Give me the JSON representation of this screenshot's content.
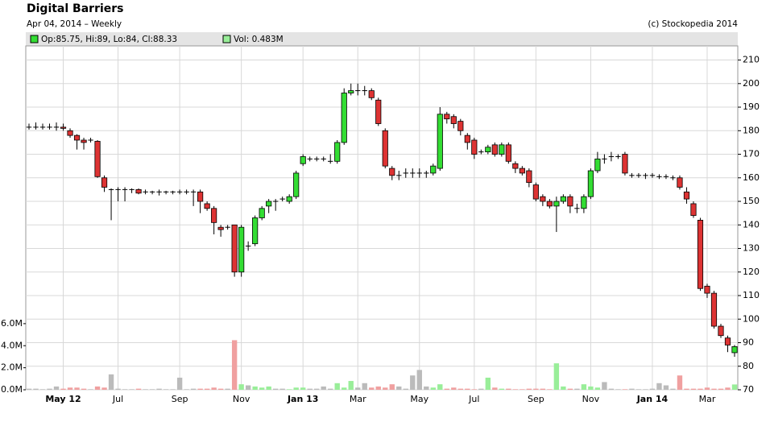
{
  "chart_data": {
    "type": "candlestick",
    "title": "Digital Barriers",
    "subtitle": "Apr 04, 2014 – Weekly",
    "source": "(c) Stockopedia 2014",
    "legend": [
      "Op:85.75, Hi:89, Lo:84, Cl:88.33",
      "Vol: 0.483M"
    ],
    "up_color": "#33dd33",
    "down_color": "#dd3333",
    "volume_colors": {
      "up": "#99ee99",
      "down": "#f0a0a0",
      "flat": "#bbbbbb"
    },
    "grid": true,
    "categories": [
      null,
      null,
      null,
      null,
      null,
      "May 12",
      null,
      null,
      null,
      null,
      null,
      null,
      null,
      "Jul",
      null,
      null,
      null,
      null,
      null,
      null,
      null,
      null,
      "Sep",
      null,
      null,
      null,
      null,
      null,
      null,
      null,
      null,
      "Nov",
      null,
      null,
      null,
      null,
      null,
      null,
      null,
      null,
      "Jan 13",
      null,
      null,
      null,
      null,
      null,
      null,
      null,
      "Mar",
      null,
      null,
      null,
      null,
      null,
      null,
      null,
      null,
      "May",
      null,
      null,
      null,
      null,
      null,
      null,
      null,
      "Jul",
      null,
      null,
      null,
      null,
      null,
      null,
      null,
      null,
      "Sep",
      null,
      null,
      null,
      null,
      null,
      null,
      null,
      "Nov",
      null,
      null,
      null,
      null,
      null,
      null,
      null,
      null,
      "Jan 14",
      null,
      null,
      null,
      null,
      null,
      null,
      null,
      "Mar",
      null,
      null,
      null,
      null
    ],
    "open": [
      181.5,
      181.5,
      181.5,
      181.5,
      181.5,
      181.5,
      180,
      178,
      176,
      176,
      175.5,
      160,
      155,
      155,
      155,
      155,
      155,
      154,
      154,
      154,
      154,
      154,
      154,
      154,
      154,
      154,
      149,
      147,
      139,
      139,
      140,
      120,
      131,
      132,
      143,
      148,
      150,
      151,
      150,
      152,
      166,
      168,
      168,
      168,
      167,
      167,
      175,
      196,
      197,
      197,
      197,
      193,
      180,
      164,
      161,
      162,
      162,
      162,
      162,
      162,
      164,
      187,
      186,
      184,
      178,
      176,
      171,
      171,
      174,
      170,
      174,
      166,
      164,
      163,
      157,
      152,
      150,
      148,
      150,
      152,
      147,
      147,
      152,
      163,
      168,
      169,
      169,
      170,
      161,
      161,
      161,
      161,
      160.5,
      160.5,
      160,
      160,
      154,
      149,
      142,
      114,
      111,
      97,
      92,
      85.75
    ],
    "high": [
      183,
      183.5,
      183,
      183,
      183.5,
      183,
      181,
      178.5,
      177,
      177,
      176,
      161,
      155.5,
      156,
      156,
      155.5,
      155.5,
      155,
      154.5,
      155,
      154.5,
      154.5,
      155,
      155,
      155,
      155,
      150,
      148,
      140,
      140,
      140,
      140,
      133,
      144,
      148,
      151,
      151,
      152,
      153,
      163,
      170,
      169,
      169,
      169,
      170,
      176,
      198,
      200,
      200,
      199,
      198,
      194,
      181,
      165,
      163,
      164,
      164,
      164,
      163,
      166,
      190,
      188,
      187,
      185,
      179,
      177,
      172,
      174,
      175,
      175,
      175,
      167,
      165,
      164,
      158,
      153,
      151,
      152,
      153,
      153,
      149,
      153,
      164,
      171,
      170,
      171,
      170,
      171,
      162,
      162,
      162,
      162,
      161.5,
      161.5,
      161,
      161,
      156,
      150,
      143,
      115,
      112,
      98,
      93,
      89
    ],
    "low": [
      180.5,
      180.5,
      180.5,
      180.5,
      180,
      180,
      177,
      172,
      172,
      175,
      160,
      154,
      142,
      150,
      150,
      153.5,
      153,
      153,
      153,
      152.5,
      153,
      153,
      153,
      153,
      148,
      145,
      146,
      136,
      135,
      138,
      118,
      118,
      129,
      131,
      142,
      145,
      146,
      150,
      149,
      151,
      165,
      167,
      167,
      167,
      166,
      166,
      174,
      195,
      195,
      195,
      193,
      182,
      164,
      159,
      159,
      160,
      160,
      160,
      160,
      161,
      163,
      183,
      181,
      178,
      172,
      168,
      170,
      170,
      169,
      169,
      166,
      162,
      161,
      156,
      150,
      148,
      147,
      137,
      149,
      145,
      145,
      145,
      151,
      162,
      166,
      167,
      168,
      161,
      160,
      160,
      159.5,
      160,
      159.5,
      159.5,
      159,
      155,
      149,
      143,
      112,
      109,
      96,
      92,
      86,
      84
    ],
    "close": [
      181.5,
      181.5,
      181.5,
      181.5,
      181.5,
      181,
      178,
      176,
      175,
      176,
      160.5,
      156,
      155,
      155,
      155,
      155,
      153.5,
      154,
      154,
      154,
      154,
      154,
      154,
      154,
      154,
      150,
      147,
      141,
      138,
      139,
      120,
      139,
      131,
      143,
      147,
      150,
      150,
      151,
      152,
      162,
      169,
      168,
      168,
      168,
      167,
      175,
      196,
      197,
      197,
      197,
      194,
      183,
      165,
      161,
      161,
      162,
      162,
      162,
      162,
      165,
      187,
      185,
      183,
      180,
      175,
      170,
      171,
      173,
      170,
      174,
      167,
      164,
      162,
      158,
      151,
      150,
      148,
      150,
      152,
      148,
      147,
      152,
      163,
      168,
      168,
      169,
      169,
      162,
      161,
      161,
      161,
      161,
      160.5,
      160.5,
      160,
      156,
      151,
      144,
      113,
      111,
      97,
      93,
      89,
      88.33
    ],
    "volume": [
      0.1,
      0.1,
      0.05,
      0.1,
      0.3,
      0.1,
      0.2,
      0.2,
      0.1,
      0.05,
      0.3,
      0.2,
      1.4,
      0.1,
      0.05,
      0.05,
      0.1,
      0.05,
      0.05,
      0.1,
      0.05,
      0.05,
      1.1,
      0.05,
      0.1,
      0.1,
      0.1,
      0.2,
      0.1,
      0.1,
      4.5,
      0.5,
      0.4,
      0.3,
      0.2,
      0.3,
      0.1,
      0.1,
      0.05,
      0.2,
      0.2,
      0.1,
      0.1,
      0.3,
      0.1,
      0.6,
      0.2,
      0.8,
      0.2,
      0.6,
      0.2,
      0.3,
      0.2,
      0.5,
      0.3,
      0.1,
      1.3,
      1.8,
      0.3,
      0.2,
      0.5,
      0.1,
      0.2,
      0.1,
      0.1,
      0.05,
      0.1,
      1.1,
      0.2,
      0.1,
      0.1,
      0.05,
      0.05,
      0.1,
      0.1,
      0.1,
      0.05,
      2.4,
      0.3,
      0.1,
      0.1,
      0.5,
      0.3,
      0.2,
      0.7,
      0.1,
      0.05,
      0.05,
      0.1,
      0.05,
      0.05,
      0.1,
      0.6,
      0.4,
      0.1,
      1.3,
      0.1,
      0.1,
      0.1,
      0.2,
      0.1,
      0.1,
      0.2,
      0.483
    ],
    "ylim": [
      70,
      216
    ],
    "yticks": [
      70,
      80,
      90,
      100,
      110,
      120,
      130,
      140,
      150,
      160,
      170,
      180,
      190,
      200,
      210
    ],
    "y2lim": [
      0,
      31.2
    ],
    "y2ticks": [
      {
        "value": 0,
        "label": "0.0M"
      },
      {
        "value": 2,
        "label": "2.0M"
      },
      {
        "value": 4,
        "label": "4.0M"
      },
      {
        "value": 6,
        "label": "6.0M"
      }
    ]
  }
}
